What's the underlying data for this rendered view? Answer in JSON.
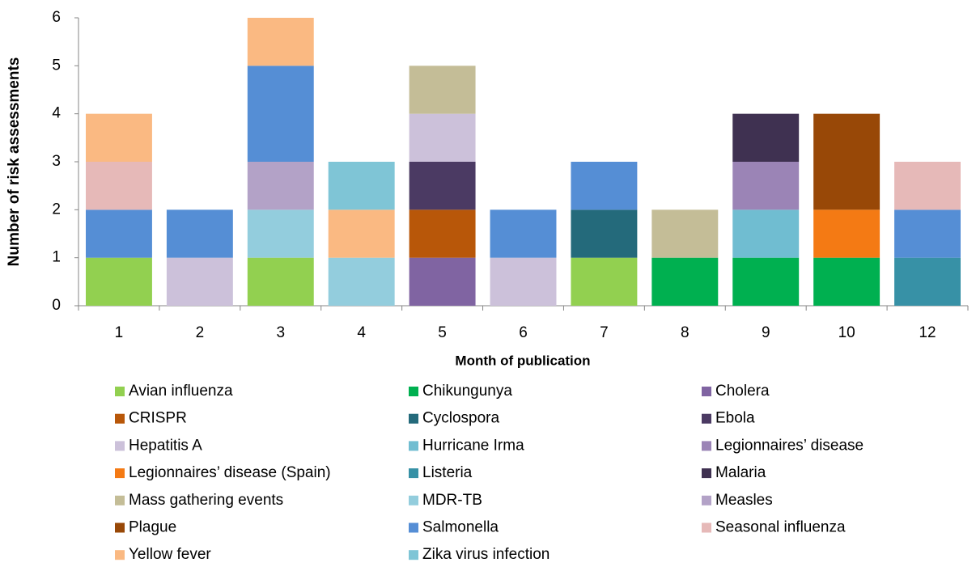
{
  "chart_data": {
    "type": "bar",
    "stacked": true,
    "y_label": "Number of risk assessments",
    "x_label": "Month of publication",
    "categories": [
      "1",
      "2",
      "3",
      "4",
      "5",
      "6",
      "7",
      "8",
      "9",
      "10",
      "12"
    ],
    "ylim": [
      0,
      6
    ],
    "yticks": [
      0,
      1,
      2,
      3,
      4,
      5,
      6
    ],
    "grid": false,
    "legend": "bottom",
    "series": [
      {
        "name": "Avian influenza",
        "color": "#92d050",
        "values": [
          1,
          0,
          1,
          0,
          0,
          0,
          1,
          0,
          0,
          0,
          0
        ]
      },
      {
        "name": "Chikungunya",
        "color": "#00b050",
        "values": [
          0,
          0,
          0,
          0,
          0,
          0,
          0,
          1,
          1,
          1,
          0
        ]
      },
      {
        "name": "Cholera",
        "color": "#8064a2",
        "values": [
          0,
          0,
          0,
          0,
          1,
          0,
          0,
          0,
          0,
          0,
          0
        ]
      },
      {
        "name": "CRISPR",
        "color": "#b85709",
        "values": [
          0,
          0,
          0,
          0,
          1,
          0,
          0,
          0,
          0,
          0,
          0
        ]
      },
      {
        "name": "Cyclospora",
        "color": "#246a7b",
        "values": [
          0,
          0,
          0,
          0,
          0,
          0,
          1,
          0,
          0,
          0,
          0
        ]
      },
      {
        "name": "Ebola",
        "color": "#4b3a63",
        "values": [
          0,
          0,
          0,
          0,
          1,
          0,
          0,
          0,
          0,
          0,
          0
        ]
      },
      {
        "name": "Hepatitis A",
        "color": "#ccc1da",
        "values": [
          0,
          1,
          0,
          0,
          1,
          1,
          0,
          0,
          0,
          0,
          0
        ]
      },
      {
        "name": "Hurricane Irma",
        "color": "#70bdd1",
        "values": [
          0,
          0,
          0,
          0,
          0,
          0,
          0,
          0,
          1,
          0,
          0
        ]
      },
      {
        "name": "Legionnaires’ disease",
        "color": "#9b84b6",
        "values": [
          0,
          0,
          0,
          0,
          0,
          0,
          0,
          0,
          1,
          0,
          0
        ]
      },
      {
        "name": "Legionnaires’ disease (Spain)",
        "color": "#f47a14",
        "values": [
          0,
          0,
          0,
          0,
          0,
          0,
          0,
          0,
          0,
          1,
          0
        ]
      },
      {
        "name": "Listeria",
        "color": "#3791a6",
        "values": [
          0,
          0,
          0,
          0,
          0,
          0,
          0,
          0,
          0,
          0,
          1
        ]
      },
      {
        "name": "Malaria",
        "color": "#3f3151",
        "values": [
          0,
          0,
          0,
          0,
          0,
          0,
          0,
          0,
          1,
          0,
          0
        ]
      },
      {
        "name": "Mass gathering events",
        "color": "#c4bd97",
        "values": [
          0,
          0,
          0,
          0,
          1,
          0,
          0,
          1,
          0,
          0,
          0
        ]
      },
      {
        "name": "MDR-TB",
        "color": "#93cddd",
        "values": [
          0,
          0,
          1,
          1,
          0,
          0,
          0,
          0,
          0,
          0,
          0
        ]
      },
      {
        "name": "Measles",
        "color": "#b3a2c7",
        "values": [
          0,
          0,
          1,
          0,
          0,
          0,
          0,
          0,
          0,
          0,
          0
        ]
      },
      {
        "name": "Plague",
        "color": "#984807",
        "values": [
          0,
          0,
          0,
          0,
          0,
          0,
          0,
          0,
          0,
          2,
          0
        ]
      },
      {
        "name": "Salmonella",
        "color": "#558ed5",
        "values": [
          1,
          1,
          2,
          0,
          0,
          1,
          1,
          0,
          0,
          0,
          1
        ]
      },
      {
        "name": "Seasonal influenza",
        "color": "#e6b9b8",
        "values": [
          1,
          0,
          0,
          0,
          0,
          0,
          0,
          0,
          0,
          0,
          1
        ]
      },
      {
        "name": "Yellow fever",
        "color": "#fab982",
        "values": [
          1,
          0,
          1,
          1,
          0,
          0,
          0,
          0,
          0,
          0,
          0
        ]
      },
      {
        "name": "Zika virus infection",
        "color": "#7fc5d6",
        "values": [
          0,
          0,
          0,
          1,
          0,
          0,
          0,
          0,
          0,
          0,
          0
        ]
      }
    ]
  }
}
